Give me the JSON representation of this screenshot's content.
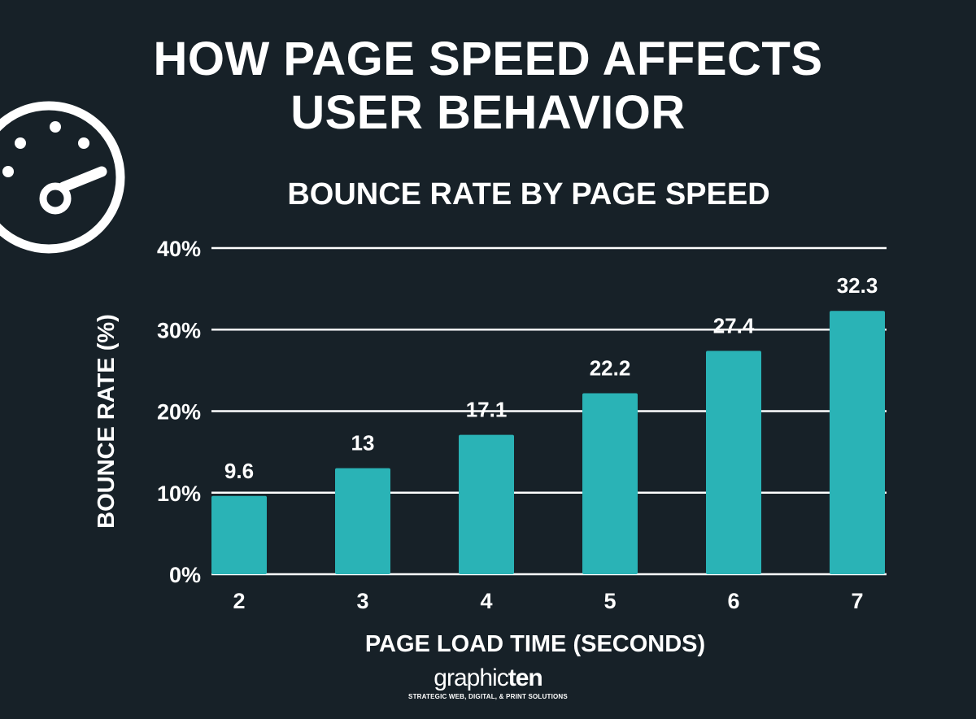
{
  "headline": {
    "line1": "HOW PAGE SPEED AFFECTS",
    "line2": "USER BEHAVIOR"
  },
  "icon": "speedometer-icon",
  "colors": {
    "background": "#172128",
    "bar": "#2ab3b6",
    "text": "#ffffff",
    "gridline": "#ffffff"
  },
  "chart_data": {
    "type": "bar",
    "title": "BOUNCE RATE BY PAGE SPEED",
    "xlabel": "PAGE LOAD TIME (SECONDS)",
    "ylabel": "BOUNCE RATE (%)",
    "categories": [
      "2",
      "3",
      "4",
      "5",
      "6",
      "7"
    ],
    "values": [
      9.6,
      13,
      17.1,
      22.2,
      27.4,
      32.3
    ],
    "data_labels": [
      "9.6",
      "13",
      "17.1",
      "22.2",
      "27.4",
      "32.3"
    ],
    "ylim": [
      0,
      40
    ],
    "yticks": [
      0,
      10,
      20,
      30,
      40
    ],
    "ytick_labels": [
      "0%",
      "10%",
      "20%",
      "30%",
      "40%"
    ],
    "grid": true,
    "legend": "none"
  },
  "brand": {
    "name_regular": "graphic",
    "name_bold": "ten",
    "tagline": "STRATEGIC WEB, DIGITAL, & PRINT SOLUTIONS"
  }
}
